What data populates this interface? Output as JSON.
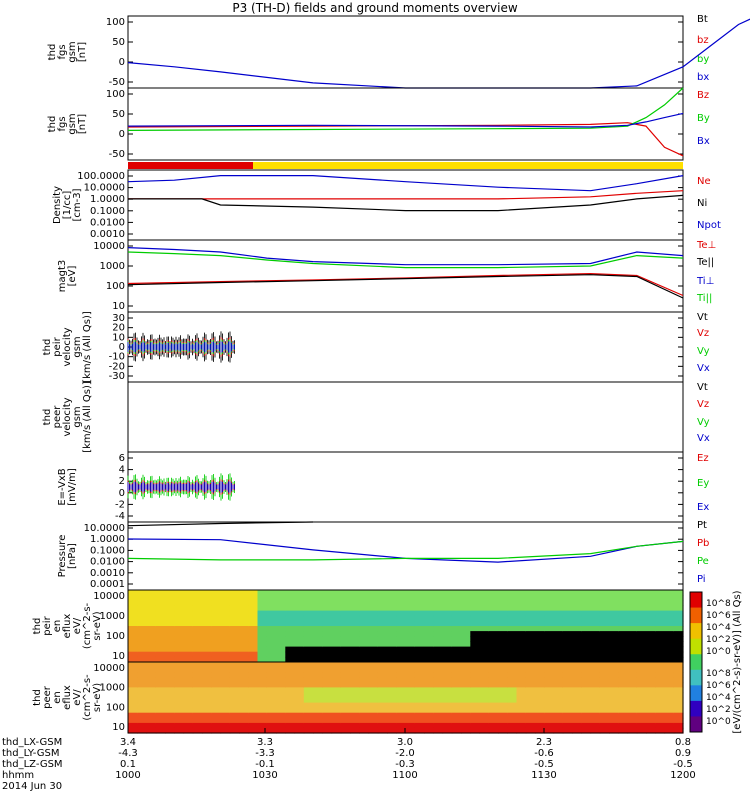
{
  "title": "P3 (TH-D) fields and ground moments overview",
  "colors": {
    "black": "#000000",
    "red": "#e00000",
    "green": "#00cc00",
    "blue": "#0000cc",
    "yellow": "#ffe000",
    "axis": "#000000"
  },
  "chart_data": [
    {
      "type": "line",
      "id": "fgs-gsm",
      "ylabel": [
        "thd",
        "fgs",
        "gsm",
        "[nT]"
      ],
      "yticks": [
        "100",
        "50",
        "0",
        "-50"
      ],
      "legend": [
        {
          "label": "Bt",
          "color": "#000000"
        },
        {
          "label": "bz",
          "color": "#e00000"
        },
        {
          "label": "by",
          "color": "#00cc00"
        },
        {
          "label": "bx",
          "color": "#0000cc"
        }
      ],
      "ylim": [
        -70,
        100
      ],
      "series": [
        {
          "name": "bx",
          "color": "#0000cc",
          "x": [
            0,
            5,
            10,
            20,
            30,
            40,
            50,
            55,
            60,
            63,
            66,
            68
          ],
          "y": [
            -10,
            -20,
            -32,
            -58,
            -78,
            -90,
            -88,
            -65,
            -20,
            30,
            80,
            100
          ]
        }
      ]
    },
    {
      "type": "line",
      "id": "fgs-gsm-dsl",
      "ylabel": [
        "thd",
        "fgs",
        "gsm",
        "[nT]"
      ],
      "yticks": [
        "100",
        "50",
        "0",
        "-50"
      ],
      "legend": [
        {
          "label": "Bz",
          "color": "#e00000"
        },
        {
          "label": "By",
          "color": "#00cc00"
        },
        {
          "label": "Bx",
          "color": "#0000cc"
        }
      ],
      "ylim": [
        -70,
        100
      ],
      "series": [
        {
          "name": "Bz",
          "color": "#e00000",
          "x": [
            0,
            20,
            40,
            50,
            54,
            56,
            58,
            60
          ],
          "y": [
            8,
            10,
            12,
            14,
            18,
            10,
            -40,
            -60
          ]
        },
        {
          "name": "By",
          "color": "#00cc00",
          "x": [
            0,
            20,
            40,
            50,
            54,
            56,
            58,
            60
          ],
          "y": [
            0,
            2,
            4,
            5,
            10,
            30,
            60,
            100
          ]
        },
        {
          "name": "Bx",
          "color": "#0000cc",
          "x": [
            0,
            20,
            40,
            50,
            54,
            56,
            58,
            60
          ],
          "y": [
            10,
            12,
            10,
            8,
            12,
            20,
            30,
            40
          ]
        }
      ]
    },
    {
      "type": "line",
      "id": "density",
      "log": true,
      "ylabel": [
        "Density",
        "[1/cc]",
        "[cm-3]"
      ],
      "yticks": [
        "100.0000",
        "10.0000",
        "1.0000",
        "0.1000",
        "0.0100",
        "0.0010"
      ],
      "legend": [
        {
          "label": "Ne",
          "color": "#e00000"
        },
        {
          "label": "Ni",
          "color": "#000000"
        },
        {
          "label": "Npot",
          "color": "#0000cc"
        }
      ],
      "ylim": [
        0.0003,
        300
      ],
      "series": [
        {
          "name": "Npot",
          "color": "#0000cc",
          "x": [
            0,
            5,
            10,
            20,
            30,
            40,
            50,
            55,
            60
          ],
          "y": [
            30,
            40,
            100,
            100,
            30,
            10,
            5,
            20,
            100
          ]
        },
        {
          "name": "Ne",
          "color": "#e00000",
          "x": [
            0,
            10,
            20,
            30,
            40,
            50,
            55,
            60
          ],
          "y": [
            1,
            1,
            1,
            1,
            1,
            1.5,
            3,
            5
          ]
        },
        {
          "name": "Ni",
          "color": "#000000",
          "x": [
            0,
            8,
            10,
            20,
            30,
            40,
            50,
            55,
            60
          ],
          "y": [
            1,
            1,
            0.3,
            0.2,
            0.1,
            0.1,
            0.3,
            1,
            2
          ]
        }
      ]
    },
    {
      "type": "line",
      "id": "magt3",
      "log": true,
      "ylabel": [
        "magt3",
        "[eV]"
      ],
      "yticks": [
        "10000",
        "1000",
        "100",
        "10"
      ],
      "legend": [
        {
          "label": "Te⊥",
          "color": "#e00000"
        },
        {
          "label": "Te||",
          "color": "#000000"
        },
        {
          "label": "Ti⊥",
          "color": "#0000cc"
        },
        {
          "label": "Ti||",
          "color": "#00cc00"
        }
      ],
      "ylim": [
        3,
        12000
      ],
      "series": [
        {
          "name": "Ti⊥",
          "color": "#0000cc",
          "x": [
            0,
            5,
            10,
            15,
            20,
            30,
            40,
            50,
            55,
            60
          ],
          "y": [
            5000,
            4000,
            3000,
            1500,
            1000,
            700,
            700,
            800,
            3000,
            2000
          ]
        },
        {
          "name": "Ti||",
          "color": "#00cc00",
          "x": [
            0,
            5,
            10,
            15,
            20,
            30,
            40,
            50,
            55,
            60
          ],
          "y": [
            3000,
            2500,
            2000,
            1200,
            800,
            500,
            500,
            600,
            2000,
            1500
          ]
        },
        {
          "name": "Te⊥",
          "color": "#e00000",
          "x": [
            0,
            10,
            20,
            30,
            40,
            50,
            55,
            60
          ],
          "y": [
            80,
            100,
            120,
            150,
            200,
            250,
            200,
            20
          ]
        },
        {
          "name": "Te||",
          "color": "#000000",
          "x": [
            0,
            10,
            20,
            30,
            40,
            50,
            55,
            60
          ],
          "y": [
            70,
            90,
            110,
            140,
            180,
            220,
            180,
            15
          ]
        }
      ]
    },
    {
      "type": "line",
      "id": "peir-velocity",
      "ylabel": [
        "thd",
        "peir",
        "velocity",
        "gsm",
        "[km/s (All Qs)]"
      ],
      "yticks": [
        "30",
        "20",
        "10",
        "0",
        "-10",
        "-20",
        "-30"
      ],
      "legend": [
        {
          "label": "Vt",
          "color": "#000000"
        },
        {
          "label": "Vz",
          "color": "#e00000"
        },
        {
          "label": "Vy",
          "color": "#00cc00"
        },
        {
          "label": "Vx",
          "color": "#0000cc"
        }
      ],
      "ylim": [
        -30,
        30
      ],
      "series": []
    },
    {
      "type": "line",
      "id": "peer-velocity",
      "ylabel": [
        "thd",
        "peer",
        "velocity",
        "gsm",
        "[km/s (All Qs)]"
      ],
      "yticks": [],
      "legend": [
        {
          "label": "Vt",
          "color": "#000000"
        },
        {
          "label": "Vz",
          "color": "#e00000"
        },
        {
          "label": "Vy",
          "color": "#00cc00"
        },
        {
          "label": "Vx",
          "color": "#0000cc"
        }
      ],
      "ylim": [
        -30,
        30
      ],
      "series": []
    },
    {
      "type": "line",
      "id": "e-vxb",
      "ylabel": [
        "E=-VxB",
        "[mV/m]"
      ],
      "yticks": [
        "6",
        "4",
        "2",
        "0",
        "-2",
        "-4"
      ],
      "legend": [
        {
          "label": "Ez",
          "color": "#e00000"
        },
        {
          "label": "Ey",
          "color": "#00cc00"
        },
        {
          "label": "Ex",
          "color": "#0000cc"
        }
      ],
      "ylim": [
        -4,
        6
      ],
      "series": []
    },
    {
      "type": "line",
      "id": "pressure",
      "log": true,
      "ylabel": [
        "Pressure",
        "[nPa]"
      ],
      "yticks": [
        "10.0000",
        "1.0000",
        "0.1000",
        "0.0100",
        "0.0010",
        "0.0001"
      ],
      "legend": [
        {
          "label": "Pt",
          "color": "#000000"
        },
        {
          "label": "Pb",
          "color": "#e00000"
        },
        {
          "label": "Pe",
          "color": "#00cc00"
        },
        {
          "label": "Pi",
          "color": "#0000cc"
        }
      ],
      "ylim": [
        5e-05,
        20
      ],
      "series": [
        {
          "name": "Pt",
          "color": "#000000",
          "x": [
            0,
            10,
            20
          ],
          "y": [
            10,
            15,
            20
          ]
        },
        {
          "name": "Pi",
          "color": "#0000cc",
          "x": [
            0,
            10,
            20,
            30,
            40,
            50,
            55,
            60
          ],
          "y": [
            0.8,
            0.7,
            0.1,
            0.02,
            0.01,
            0.03,
            0.2,
            0.5
          ]
        },
        {
          "name": "Pe",
          "color": "#00cc00",
          "x": [
            0,
            10,
            20,
            30,
            40,
            50,
            55,
            60
          ],
          "y": [
            0.02,
            0.015,
            0.015,
            0.02,
            0.02,
            0.05,
            0.2,
            0.5
          ]
        }
      ]
    },
    {
      "type": "heatmap",
      "id": "peir-eflux",
      "ylabel": [
        "thd",
        "peir",
        "en",
        "eflux",
        "eV/",
        "(cm^2-s-",
        "sr-eV)"
      ],
      "yticks": [
        "10000",
        "1000",
        "100",
        "10"
      ]
    },
    {
      "type": "heatmap",
      "id": "peer-eflux",
      "ylabel": [
        "thd",
        "peer",
        "en",
        "eflux",
        "eV/",
        "(cm^2-s-",
        "sr-eV)"
      ],
      "yticks": [
        "10000",
        "1000",
        "100",
        "10"
      ]
    }
  ],
  "colorbar": {
    "label": "[eV/(cm^2-s)-sr-eV)] (All Qs)",
    "ticks_top": [
      "10^8",
      "10^6",
      "10^4",
      "10^2",
      "10^0"
    ],
    "ticks_bottom": [
      "10^8",
      "10^6",
      "10^4",
      "10^2",
      "10^0"
    ]
  },
  "xaxis": {
    "rows": [
      {
        "label": "thd_LX-GSM",
        "values": [
          "3.4",
          "3.3",
          "3.0",
          "2.3",
          "0.8"
        ]
      },
      {
        "label": "thd_LY-GSM",
        "values": [
          "-4.3",
          "-3.3",
          "-2.0",
          "-0.6",
          "0.9"
        ]
      },
      {
        "label": "thd_LZ-GSM",
        "values": [
          "0.1",
          "-0.1",
          "-0.3",
          "-0.5",
          "-0.5"
        ]
      },
      {
        "label": "hhmm",
        "values": [
          "1000",
          "1030",
          "1100",
          "1130",
          "1200"
        ]
      }
    ],
    "date": "2014 Jun 30"
  }
}
